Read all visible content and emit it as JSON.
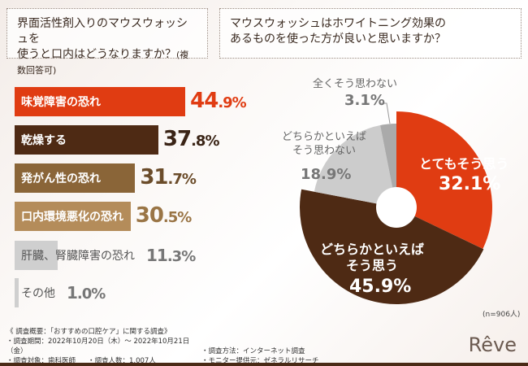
{
  "questions": {
    "q1": "界面活性剤入りのマウスウォッシュを",
    "q1b": "使うと口内はどうなりますか？",
    "q1note": "(複数回答可)",
    "q2": "マウスウォッシュはホワイトニング効果の",
    "q2b": "あるものを使った方が良いと思いますか？"
  },
  "chart_data": [
    {
      "type": "bar",
      "orientation": "horizontal",
      "categories": [
        "味覚障害の恐れ",
        "乾燥する",
        "発がん性の恐れ",
        "口内環境悪化の恐れ",
        "肝臓、腎臓障害の恐れ",
        "その他"
      ],
      "values": [
        44.9,
        37.8,
        31.7,
        30.5,
        11.3,
        1.0
      ],
      "value_labels": [
        "44.9",
        "37.8",
        "31.7",
        "30.5",
        "11.3",
        "1.0"
      ],
      "unit": "%",
      "colors": [
        "#e03c12",
        "#4e2a14",
        "#8a6538",
        "#b48c5a",
        "#cfcfcf",
        "#cfcfcf"
      ],
      "label_colors": [
        "#ffffff",
        "#ffffff",
        "#ffffff",
        "#ffffff",
        "#555555",
        "#555555"
      ],
      "value_colors": [
        "#e03c12",
        "#3a2416",
        "#6b4c2a",
        "#9a7546",
        "#777777",
        "#777777"
      ]
    },
    {
      "type": "pie",
      "style": "donut",
      "categories": [
        "とてもそう思う",
        "どちらかといえばそう思う",
        "どちらかといえばそう思わない",
        "全くそう思わない"
      ],
      "values": [
        32.1,
        45.9,
        18.9,
        3.1
      ],
      "value_labels": [
        "32.1%",
        "45.9%",
        "18.9%",
        "3.1%"
      ],
      "colors": [
        "#e03c12",
        "#4e2a14",
        "#cccccc",
        "#aaaaaa"
      ],
      "n_label": "(n=906人)"
    }
  ],
  "footer": {
    "title": "《 調査概要：「おすすめの口腔ケア」に関する調査》",
    "period": "・調査期間：2022年10月20日（木）～ 2022年10月21日（金）",
    "method": "・調査方法：インターネット調査",
    "target": "・調査対象：歯科医師",
    "count": "・調査人数：1,007人",
    "provider": "・モニター提供元：ゼネラルリサーチ"
  },
  "brand": "Rêve"
}
